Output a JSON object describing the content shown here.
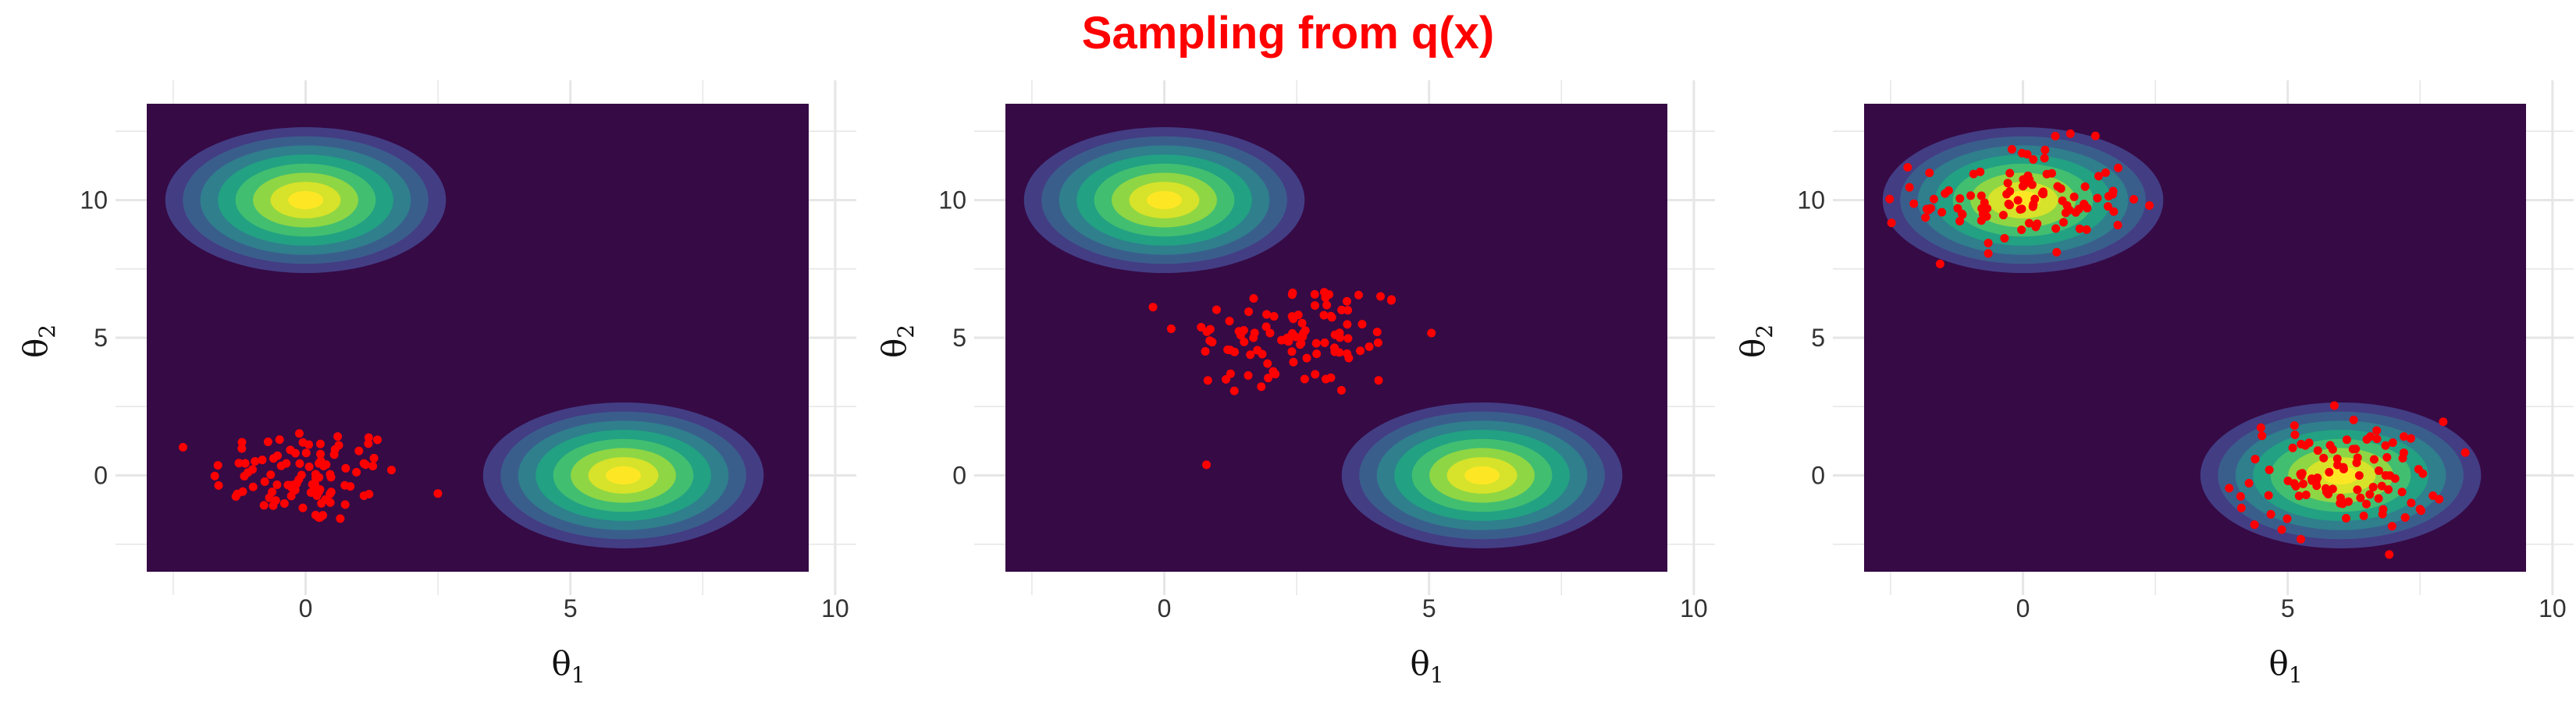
{
  "figure": {
    "title": "Sampling from q(x)",
    "title_color": "#ff0000"
  },
  "colors": {
    "background": "#360a45",
    "contour_levels": [
      "#440154",
      "#433d84",
      "#3a5e8c",
      "#2f7f8d",
      "#22a183",
      "#42be71",
      "#8fd644",
      "#d6e32a",
      "#fde725"
    ],
    "sample_points": "#ff0000",
    "grid": "#e6e6e6"
  },
  "chart_data": [
    {
      "type": "scatter",
      "panel": "left",
      "xlabel": "θ1",
      "ylabel": "θ2",
      "xlim": [
        -3,
        9.5
      ],
      "ylim": [
        -3.5,
        13.5
      ],
      "xticks": [
        0,
        5,
        10
      ],
      "yticks": [
        0,
        5,
        10
      ],
      "grid": true,
      "target_modes": [
        {
          "x": 0,
          "y": 10
        },
        {
          "x": 6,
          "y": 0
        }
      ],
      "samples": {
        "n": 100,
        "center": [
          0,
          0
        ],
        "spread": [
          0.9,
          0.9
        ]
      }
    },
    {
      "type": "scatter",
      "panel": "middle",
      "xlabel": "θ1",
      "ylabel": "θ2",
      "xlim": [
        -3,
        9.5
      ],
      "ylim": [
        -3.5,
        13.5
      ],
      "xticks": [
        0,
        5,
        10
      ],
      "yticks": [
        0,
        5,
        10
      ],
      "grid": true,
      "target_modes": [
        {
          "x": 0,
          "y": 10
        },
        {
          "x": 6,
          "y": 0
        }
      ],
      "samples": {
        "n": 100,
        "center": [
          2.5,
          5
        ],
        "spread": [
          1.1,
          1.1
        ]
      }
    },
    {
      "type": "scatter",
      "panel": "right",
      "xlabel": "θ1",
      "ylabel": "θ2",
      "xlim": [
        -3,
        9.5
      ],
      "ylim": [
        -3.5,
        13.5
      ],
      "xticks": [
        0,
        5,
        10
      ],
      "yticks": [
        0,
        5,
        10
      ],
      "grid": true,
      "target_modes": [
        {
          "x": 0,
          "y": 10
        },
        {
          "x": 6,
          "y": 0
        }
      ],
      "samples": {
        "n": 200,
        "components": [
          {
            "center": [
              0,
              10
            ],
            "spread": [
              1.0,
              1.0
            ]
          },
          {
            "center": [
              6,
              0
            ],
            "spread": [
              1.0,
              1.0
            ]
          }
        ]
      }
    }
  ]
}
